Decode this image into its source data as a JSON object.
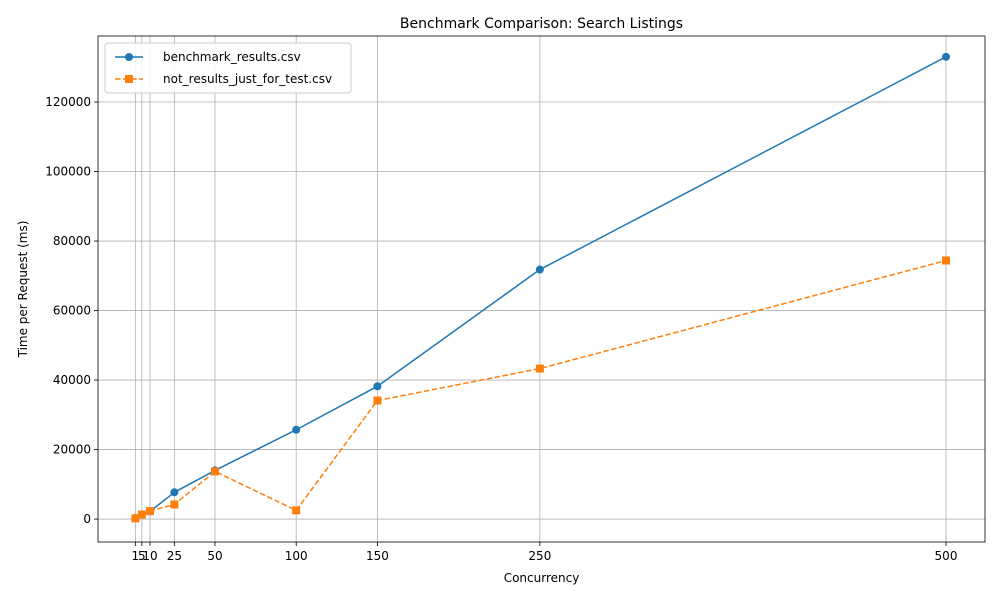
{
  "chart_data": {
    "type": "line",
    "title": "Benchmark Comparison: Search Listings",
    "xlabel": "Concurrency",
    "ylabel": "Time per Request (ms)",
    "x": [
      1,
      5,
      10,
      25,
      50,
      100,
      150,
      250,
      500
    ],
    "x_tick_labels": [
      "1",
      "5",
      "10",
      "25",
      "50",
      "100",
      "150",
      "250",
      "500"
    ],
    "xlim": [
      -22,
      524
    ],
    "ylim": [
      -6600,
      139000
    ],
    "y_ticks": [
      0,
      20000,
      40000,
      60000,
      80000,
      100000,
      120000
    ],
    "y_tick_labels": [
      "0",
      "20000",
      "40000",
      "60000",
      "80000",
      "100000",
      "120000"
    ],
    "grid": true,
    "legend_position": "upper-left",
    "series": [
      {
        "name": "benchmark_results.csv",
        "color": "#1f77b4",
        "line_style": "solid",
        "marker": "circle",
        "values": [
          300,
          1300,
          2200,
          7700,
          14000,
          25700,
          38200,
          71800,
          133000
        ]
      },
      {
        "name": "not_results_just_for_test.csv",
        "color": "#ff7f0e",
        "line_style": "dashed",
        "marker": "square",
        "values": [
          200,
          1300,
          2300,
          4200,
          13700,
          2500,
          34100,
          43300,
          74400
        ]
      }
    ]
  }
}
